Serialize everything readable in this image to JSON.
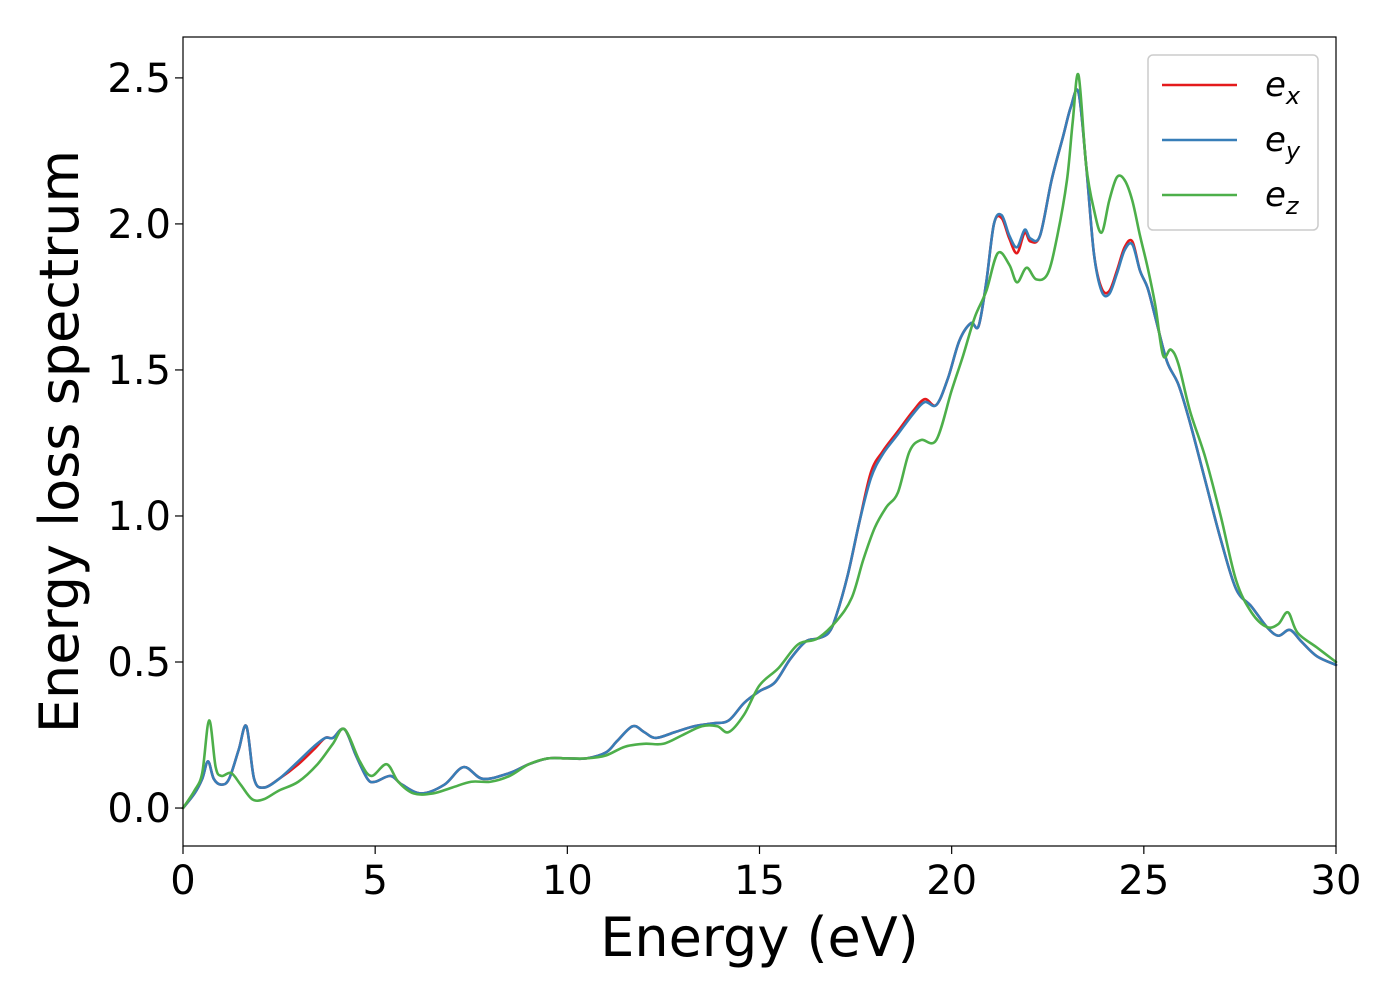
{
  "chart_data": {
    "type": "line",
    "xlabel": "Energy (eV)",
    "ylabel": "Energy loss spectrum",
    "xlim": [
      0,
      30
    ],
    "ylim": [
      -0.13,
      2.64
    ],
    "xticks": [
      0,
      5,
      10,
      15,
      20,
      25,
      30
    ],
    "xtick_labels": [
      "0",
      "5",
      "10",
      "15",
      "20",
      "25",
      "30"
    ],
    "yticks": [
      0.0,
      0.5,
      1.0,
      1.5,
      2.0,
      2.5
    ],
    "ytick_labels": [
      "0.0",
      "0.5",
      "1.0",
      "1.5",
      "2.0",
      "2.5"
    ],
    "grid": false,
    "legend_position": "top-right",
    "series": [
      {
        "name": "e",
        "subscript": "x",
        "color": "#e41a1c",
        "x": [
          0,
          0.3,
          0.5,
          0.65,
          0.8,
          1.0,
          1.2,
          1.45,
          1.65,
          1.85,
          2.1,
          2.5,
          3.0,
          3.4,
          3.7,
          3.9,
          4.2,
          4.5,
          4.8,
          5.0,
          5.4,
          5.7,
          6.2,
          6.8,
          7.3,
          7.8,
          8.5,
          9.0,
          9.5,
          10.0,
          10.5,
          11.0,
          11.3,
          11.7,
          12.0,
          12.3,
          12.8,
          13.3,
          13.8,
          14.2,
          14.6,
          15.0,
          15.4,
          15.8,
          16.2,
          16.5,
          16.8,
          17.0,
          17.3,
          17.6,
          17.9,
          18.2,
          18.6,
          19.0,
          19.3,
          19.6,
          19.9,
          20.2,
          20.5,
          20.7,
          20.9,
          21.1,
          21.3,
          21.5,
          21.7,
          21.9,
          22.05,
          22.3,
          22.6,
          22.9,
          23.1,
          23.3,
          23.5,
          23.7,
          23.9,
          24.1,
          24.3,
          24.5,
          24.7,
          24.9,
          25.1,
          25.3,
          25.6,
          25.9,
          26.2,
          26.6,
          27.0,
          27.4,
          27.8,
          28.2,
          28.5,
          28.8,
          29.1,
          29.5,
          30.0
        ],
        "y": [
          0.0,
          0.05,
          0.1,
          0.16,
          0.1,
          0.08,
          0.1,
          0.2,
          0.28,
          0.1,
          0.07,
          0.1,
          0.15,
          0.2,
          0.24,
          0.24,
          0.27,
          0.18,
          0.1,
          0.09,
          0.11,
          0.08,
          0.05,
          0.08,
          0.14,
          0.1,
          0.12,
          0.15,
          0.17,
          0.17,
          0.17,
          0.19,
          0.23,
          0.28,
          0.26,
          0.24,
          0.26,
          0.28,
          0.29,
          0.3,
          0.36,
          0.4,
          0.43,
          0.51,
          0.57,
          0.58,
          0.6,
          0.66,
          0.8,
          0.98,
          1.15,
          1.22,
          1.29,
          1.36,
          1.4,
          1.38,
          1.47,
          1.6,
          1.66,
          1.65,
          1.8,
          2.0,
          2.02,
          1.95,
          1.9,
          1.97,
          1.94,
          1.96,
          2.15,
          2.3,
          2.4,
          2.45,
          2.2,
          1.9,
          1.78,
          1.77,
          1.84,
          1.92,
          1.94,
          1.84,
          1.78,
          1.68,
          1.53,
          1.45,
          1.32,
          1.12,
          0.92,
          0.75,
          0.69,
          0.62,
          0.59,
          0.61,
          0.57,
          0.52,
          0.49
        ]
      },
      {
        "name": "e",
        "subscript": "y",
        "color": "#377eb8",
        "x": [
          0,
          0.3,
          0.5,
          0.65,
          0.8,
          1.0,
          1.2,
          1.45,
          1.65,
          1.85,
          2.1,
          2.5,
          3.0,
          3.4,
          3.7,
          3.9,
          4.2,
          4.5,
          4.8,
          5.0,
          5.4,
          5.7,
          6.2,
          6.8,
          7.3,
          7.8,
          8.5,
          9.0,
          9.5,
          10.0,
          10.5,
          11.0,
          11.3,
          11.7,
          12.0,
          12.3,
          12.8,
          13.3,
          13.8,
          14.2,
          14.6,
          15.0,
          15.4,
          15.8,
          16.2,
          16.5,
          16.8,
          17.0,
          17.3,
          17.6,
          17.9,
          18.2,
          18.6,
          19.0,
          19.3,
          19.6,
          19.9,
          20.2,
          20.5,
          20.7,
          20.9,
          21.1,
          21.3,
          21.5,
          21.7,
          21.9,
          22.05,
          22.3,
          22.6,
          22.9,
          23.1,
          23.3,
          23.5,
          23.7,
          23.9,
          24.1,
          24.3,
          24.5,
          24.7,
          24.9,
          25.1,
          25.3,
          25.6,
          25.9,
          26.2,
          26.6,
          27.0,
          27.4,
          27.8,
          28.2,
          28.5,
          28.8,
          29.1,
          29.5,
          30.0
        ],
        "y": [
          0.0,
          0.05,
          0.1,
          0.16,
          0.1,
          0.08,
          0.1,
          0.2,
          0.28,
          0.1,
          0.07,
          0.1,
          0.16,
          0.21,
          0.24,
          0.24,
          0.27,
          0.18,
          0.1,
          0.09,
          0.11,
          0.08,
          0.05,
          0.08,
          0.14,
          0.1,
          0.12,
          0.15,
          0.17,
          0.17,
          0.17,
          0.19,
          0.23,
          0.28,
          0.26,
          0.24,
          0.26,
          0.28,
          0.29,
          0.3,
          0.36,
          0.4,
          0.43,
          0.51,
          0.57,
          0.58,
          0.6,
          0.66,
          0.8,
          0.98,
          1.13,
          1.21,
          1.28,
          1.35,
          1.39,
          1.38,
          1.47,
          1.6,
          1.66,
          1.65,
          1.8,
          2.0,
          2.03,
          1.96,
          1.92,
          1.98,
          1.95,
          1.96,
          2.15,
          2.3,
          2.4,
          2.45,
          2.2,
          1.9,
          1.77,
          1.76,
          1.83,
          1.91,
          1.93,
          1.84,
          1.78,
          1.68,
          1.53,
          1.45,
          1.32,
          1.12,
          0.92,
          0.75,
          0.69,
          0.62,
          0.59,
          0.61,
          0.57,
          0.52,
          0.49
        ]
      },
      {
        "name": "e",
        "subscript": "z",
        "color": "#4daf4a",
        "x": [
          0,
          0.3,
          0.5,
          0.68,
          0.85,
          1.0,
          1.25,
          1.5,
          1.8,
          2.1,
          2.5,
          3.0,
          3.5,
          3.9,
          4.2,
          4.6,
          4.9,
          5.3,
          5.6,
          6.0,
          6.5,
          7.0,
          7.5,
          8.0,
          8.5,
          9.0,
          9.5,
          10.0,
          10.5,
          11.0,
          11.5,
          12.0,
          12.5,
          13.0,
          13.5,
          13.9,
          14.2,
          14.6,
          15.0,
          15.5,
          16.0,
          16.5,
          17.0,
          17.4,
          17.7,
          18.0,
          18.3,
          18.6,
          18.9,
          19.2,
          19.6,
          20.0,
          20.3,
          20.6,
          20.9,
          21.2,
          21.5,
          21.7,
          21.95,
          22.2,
          22.5,
          22.75,
          23.0,
          23.15,
          23.3,
          23.5,
          23.7,
          23.9,
          24.1,
          24.3,
          24.5,
          24.7,
          24.9,
          25.1,
          25.3,
          25.5,
          25.7,
          25.9,
          26.2,
          26.6,
          27.0,
          27.4,
          27.8,
          28.2,
          28.5,
          28.75,
          29.0,
          29.5,
          30.0
        ],
        "y": [
          0.0,
          0.06,
          0.12,
          0.3,
          0.14,
          0.11,
          0.12,
          0.08,
          0.03,
          0.03,
          0.06,
          0.09,
          0.15,
          0.22,
          0.27,
          0.16,
          0.11,
          0.15,
          0.09,
          0.05,
          0.05,
          0.07,
          0.09,
          0.09,
          0.11,
          0.15,
          0.17,
          0.17,
          0.17,
          0.18,
          0.21,
          0.22,
          0.22,
          0.25,
          0.28,
          0.28,
          0.26,
          0.32,
          0.42,
          0.48,
          0.56,
          0.58,
          0.64,
          0.72,
          0.85,
          0.96,
          1.03,
          1.08,
          1.22,
          1.26,
          1.26,
          1.43,
          1.55,
          1.68,
          1.77,
          1.9,
          1.86,
          1.8,
          1.85,
          1.81,
          1.83,
          1.96,
          2.15,
          2.35,
          2.51,
          2.2,
          2.05,
          1.97,
          2.08,
          2.16,
          2.15,
          2.08,
          1.96,
          1.85,
          1.72,
          1.55,
          1.57,
          1.52,
          1.36,
          1.2,
          1.0,
          0.78,
          0.67,
          0.62,
          0.63,
          0.67,
          0.6,
          0.55,
          0.5
        ]
      }
    ]
  }
}
